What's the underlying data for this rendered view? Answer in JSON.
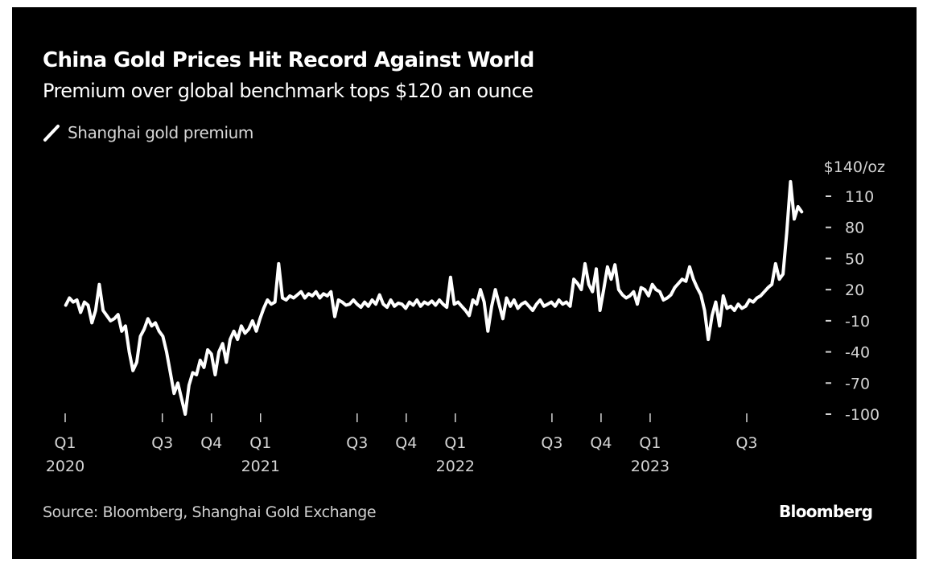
{
  "header": {
    "title": "China Gold Prices Hit Record Against World",
    "subtitle": "Premium over global benchmark tops $120 an ounce"
  },
  "legend": {
    "items": [
      {
        "label": "Shanghai gold premium",
        "color": "#ffffff",
        "icon": "line-swatch-icon"
      }
    ]
  },
  "footer": {
    "source": "Source: Bloomberg, Shanghai Gold Exchange",
    "brand": "Bloomberg"
  },
  "colors": {
    "background": "#000000",
    "line": "#ffffff",
    "text": "#d4d4d4"
  },
  "chart_data": {
    "type": "line",
    "title": "China Gold Prices Hit Record Against World",
    "subtitle": "Premium over global benchmark tops $120 an ounce",
    "xlabel": "",
    "ylabel": "$/oz",
    "y_unit_label": "$140/oz",
    "ylim": [
      -110,
      140
    ],
    "y_ticks": [
      110,
      80,
      50,
      20,
      -10,
      -40,
      -70,
      -100
    ],
    "y_axis_position": "right",
    "grid": false,
    "legend_position": "top-left",
    "x_ticks": [
      {
        "date": "2020-01-01",
        "label": "Q1",
        "year": "2020"
      },
      {
        "date": "2020-07-01",
        "label": "Q3",
        "year": ""
      },
      {
        "date": "2020-10-01",
        "label": "Q4",
        "year": ""
      },
      {
        "date": "2021-01-01",
        "label": "Q1",
        "year": "2021"
      },
      {
        "date": "2021-07-01",
        "label": "Q3",
        "year": ""
      },
      {
        "date": "2021-10-01",
        "label": "Q4",
        "year": ""
      },
      {
        "date": "2022-01-01",
        "label": "Q1",
        "year": "2022"
      },
      {
        "date": "2022-07-01",
        "label": "Q3",
        "year": ""
      },
      {
        "date": "2022-10-01",
        "label": "Q4",
        "year": ""
      },
      {
        "date": "2023-01-01",
        "label": "Q1",
        "year": "2023"
      },
      {
        "date": "2023-07-01",
        "label": "Q3",
        "year": ""
      }
    ],
    "x_range": [
      "2020-01-01",
      "2023-10-20"
    ],
    "series": [
      {
        "name": "Shanghai gold premium",
        "color": "#ffffff",
        "points": [
          [
            "2020-01-02",
            5
          ],
          [
            "2020-01-09",
            12
          ],
          [
            "2020-01-16",
            8
          ],
          [
            "2020-01-23",
            10
          ],
          [
            "2020-01-30",
            -2
          ],
          [
            "2020-02-06",
            8
          ],
          [
            "2020-02-13",
            5
          ],
          [
            "2020-02-20",
            -12
          ],
          [
            "2020-02-27",
            0
          ],
          [
            "2020-03-05",
            25
          ],
          [
            "2020-03-12",
            0
          ],
          [
            "2020-03-19",
            -5
          ],
          [
            "2020-03-26",
            -10
          ],
          [
            "2020-04-02",
            -8
          ],
          [
            "2020-04-09",
            -4
          ],
          [
            "2020-04-16",
            -20
          ],
          [
            "2020-04-23",
            -15
          ],
          [
            "2020-04-30",
            -40
          ],
          [
            "2020-05-07",
            -58
          ],
          [
            "2020-05-14",
            -50
          ],
          [
            "2020-05-21",
            -25
          ],
          [
            "2020-05-28",
            -18
          ],
          [
            "2020-06-04",
            -8
          ],
          [
            "2020-06-11",
            -15
          ],
          [
            "2020-06-18",
            -12
          ],
          [
            "2020-06-25",
            -20
          ],
          [
            "2020-07-02",
            -25
          ],
          [
            "2020-07-09",
            -40
          ],
          [
            "2020-07-16",
            -60
          ],
          [
            "2020-07-23",
            -80
          ],
          [
            "2020-07-30",
            -70
          ],
          [
            "2020-08-06",
            -85
          ],
          [
            "2020-08-13",
            -100
          ],
          [
            "2020-08-20",
            -72
          ],
          [
            "2020-08-27",
            -60
          ],
          [
            "2020-09-03",
            -62
          ],
          [
            "2020-09-10",
            -48
          ],
          [
            "2020-09-17",
            -55
          ],
          [
            "2020-09-24",
            -38
          ],
          [
            "2020-10-01",
            -42
          ],
          [
            "2020-10-08",
            -62
          ],
          [
            "2020-10-15",
            -40
          ],
          [
            "2020-10-22",
            -32
          ],
          [
            "2020-10-29",
            -50
          ],
          [
            "2020-11-05",
            -28
          ],
          [
            "2020-11-12",
            -20
          ],
          [
            "2020-11-19",
            -28
          ],
          [
            "2020-11-26",
            -15
          ],
          [
            "2020-12-03",
            -22
          ],
          [
            "2020-12-10",
            -18
          ],
          [
            "2020-12-17",
            -10
          ],
          [
            "2020-12-24",
            -20
          ],
          [
            "2020-12-31",
            -8
          ],
          [
            "2021-01-07",
            2
          ],
          [
            "2021-01-14",
            10
          ],
          [
            "2021-01-21",
            6
          ],
          [
            "2021-01-28",
            8
          ],
          [
            "2021-02-04",
            45
          ],
          [
            "2021-02-11",
            12
          ],
          [
            "2021-02-18",
            10
          ],
          [
            "2021-02-25",
            14
          ],
          [
            "2021-03-04",
            12
          ],
          [
            "2021-03-11",
            15
          ],
          [
            "2021-03-18",
            18
          ],
          [
            "2021-03-25",
            12
          ],
          [
            "2021-04-01",
            16
          ],
          [
            "2021-04-08",
            14
          ],
          [
            "2021-04-15",
            18
          ],
          [
            "2021-04-22",
            12
          ],
          [
            "2021-04-29",
            16
          ],
          [
            "2021-05-06",
            14
          ],
          [
            "2021-05-13",
            18
          ],
          [
            "2021-05-20",
            -6
          ],
          [
            "2021-05-27",
            10
          ],
          [
            "2021-06-03",
            8
          ],
          [
            "2021-06-10",
            5
          ],
          [
            "2021-06-17",
            6
          ],
          [
            "2021-06-24",
            10
          ],
          [
            "2021-07-01",
            6
          ],
          [
            "2021-07-08",
            3
          ],
          [
            "2021-07-15",
            8
          ],
          [
            "2021-07-22",
            4
          ],
          [
            "2021-07-29",
            10
          ],
          [
            "2021-08-05",
            6
          ],
          [
            "2021-08-12",
            15
          ],
          [
            "2021-08-19",
            6
          ],
          [
            "2021-08-26",
            3
          ],
          [
            "2021-09-02",
            10
          ],
          [
            "2021-09-09",
            4
          ],
          [
            "2021-09-16",
            7
          ],
          [
            "2021-09-23",
            6
          ],
          [
            "2021-09-30",
            2
          ],
          [
            "2021-10-07",
            8
          ],
          [
            "2021-10-14",
            5
          ],
          [
            "2021-10-21",
            10
          ],
          [
            "2021-10-28",
            4
          ],
          [
            "2021-11-04",
            8
          ],
          [
            "2021-11-11",
            6
          ],
          [
            "2021-11-18",
            9
          ],
          [
            "2021-11-25",
            5
          ],
          [
            "2021-12-02",
            10
          ],
          [
            "2021-12-09",
            6
          ],
          [
            "2021-12-16",
            3
          ],
          [
            "2021-12-23",
            32
          ],
          [
            "2021-12-30",
            6
          ],
          [
            "2022-01-06",
            8
          ],
          [
            "2022-01-13",
            4
          ],
          [
            "2022-01-20",
            0
          ],
          [
            "2022-01-27",
            -5
          ],
          [
            "2022-02-03",
            10
          ],
          [
            "2022-02-10",
            6
          ],
          [
            "2022-02-17",
            20
          ],
          [
            "2022-02-24",
            8
          ],
          [
            "2022-03-03",
            -20
          ],
          [
            "2022-03-10",
            4
          ],
          [
            "2022-03-17",
            20
          ],
          [
            "2022-03-24",
            6
          ],
          [
            "2022-03-31",
            -8
          ],
          [
            "2022-04-07",
            12
          ],
          [
            "2022-04-14",
            4
          ],
          [
            "2022-04-21",
            10
          ],
          [
            "2022-04-28",
            2
          ],
          [
            "2022-05-05",
            6
          ],
          [
            "2022-05-12",
            8
          ],
          [
            "2022-05-19",
            4
          ],
          [
            "2022-05-26",
            0
          ],
          [
            "2022-06-02",
            6
          ],
          [
            "2022-06-09",
            10
          ],
          [
            "2022-06-16",
            4
          ],
          [
            "2022-06-23",
            6
          ],
          [
            "2022-06-30",
            8
          ],
          [
            "2022-07-07",
            4
          ],
          [
            "2022-07-14",
            10
          ],
          [
            "2022-07-21",
            6
          ],
          [
            "2022-07-28",
            8
          ],
          [
            "2022-08-04",
            4
          ],
          [
            "2022-08-11",
            30
          ],
          [
            "2022-08-18",
            26
          ],
          [
            "2022-08-25",
            20
          ],
          [
            "2022-09-01",
            45
          ],
          [
            "2022-09-08",
            25
          ],
          [
            "2022-09-15",
            18
          ],
          [
            "2022-09-22",
            40
          ],
          [
            "2022-09-29",
            0
          ],
          [
            "2022-10-06",
            20
          ],
          [
            "2022-10-13",
            42
          ],
          [
            "2022-10-20",
            30
          ],
          [
            "2022-10-27",
            44
          ],
          [
            "2022-11-03",
            20
          ],
          [
            "2022-11-10",
            15
          ],
          [
            "2022-11-17",
            12
          ],
          [
            "2022-11-24",
            14
          ],
          [
            "2022-12-01",
            18
          ],
          [
            "2022-12-08",
            6
          ],
          [
            "2022-12-15",
            22
          ],
          [
            "2022-12-22",
            20
          ],
          [
            "2022-12-29",
            14
          ],
          [
            "2023-01-05",
            25
          ],
          [
            "2023-01-12",
            20
          ],
          [
            "2023-01-19",
            18
          ],
          [
            "2023-01-26",
            10
          ],
          [
            "2023-02-02",
            12
          ],
          [
            "2023-02-09",
            15
          ],
          [
            "2023-02-16",
            22
          ],
          [
            "2023-02-23",
            26
          ],
          [
            "2023-03-02",
            30
          ],
          [
            "2023-03-09",
            28
          ],
          [
            "2023-03-16",
            42
          ],
          [
            "2023-03-23",
            30
          ],
          [
            "2023-03-30",
            22
          ],
          [
            "2023-04-06",
            15
          ],
          [
            "2023-04-13",
            0
          ],
          [
            "2023-04-20",
            -28
          ],
          [
            "2023-04-27",
            -5
          ],
          [
            "2023-05-04",
            8
          ],
          [
            "2023-05-11",
            -15
          ],
          [
            "2023-05-18",
            14
          ],
          [
            "2023-05-25",
            2
          ],
          [
            "2023-06-01",
            4
          ],
          [
            "2023-06-08",
            0
          ],
          [
            "2023-06-15",
            6
          ],
          [
            "2023-06-22",
            2
          ],
          [
            "2023-06-29",
            4
          ],
          [
            "2023-07-06",
            10
          ],
          [
            "2023-07-13",
            8
          ],
          [
            "2023-07-20",
            12
          ],
          [
            "2023-07-27",
            14
          ],
          [
            "2023-08-03",
            18
          ],
          [
            "2023-08-10",
            22
          ],
          [
            "2023-08-17",
            25
          ],
          [
            "2023-08-24",
            45
          ],
          [
            "2023-08-31",
            30
          ],
          [
            "2023-09-07",
            35
          ],
          [
            "2023-09-14",
            75
          ],
          [
            "2023-09-21",
            124
          ],
          [
            "2023-09-28",
            88
          ],
          [
            "2023-10-05",
            100
          ],
          [
            "2023-10-12",
            95
          ]
        ]
      }
    ]
  }
}
